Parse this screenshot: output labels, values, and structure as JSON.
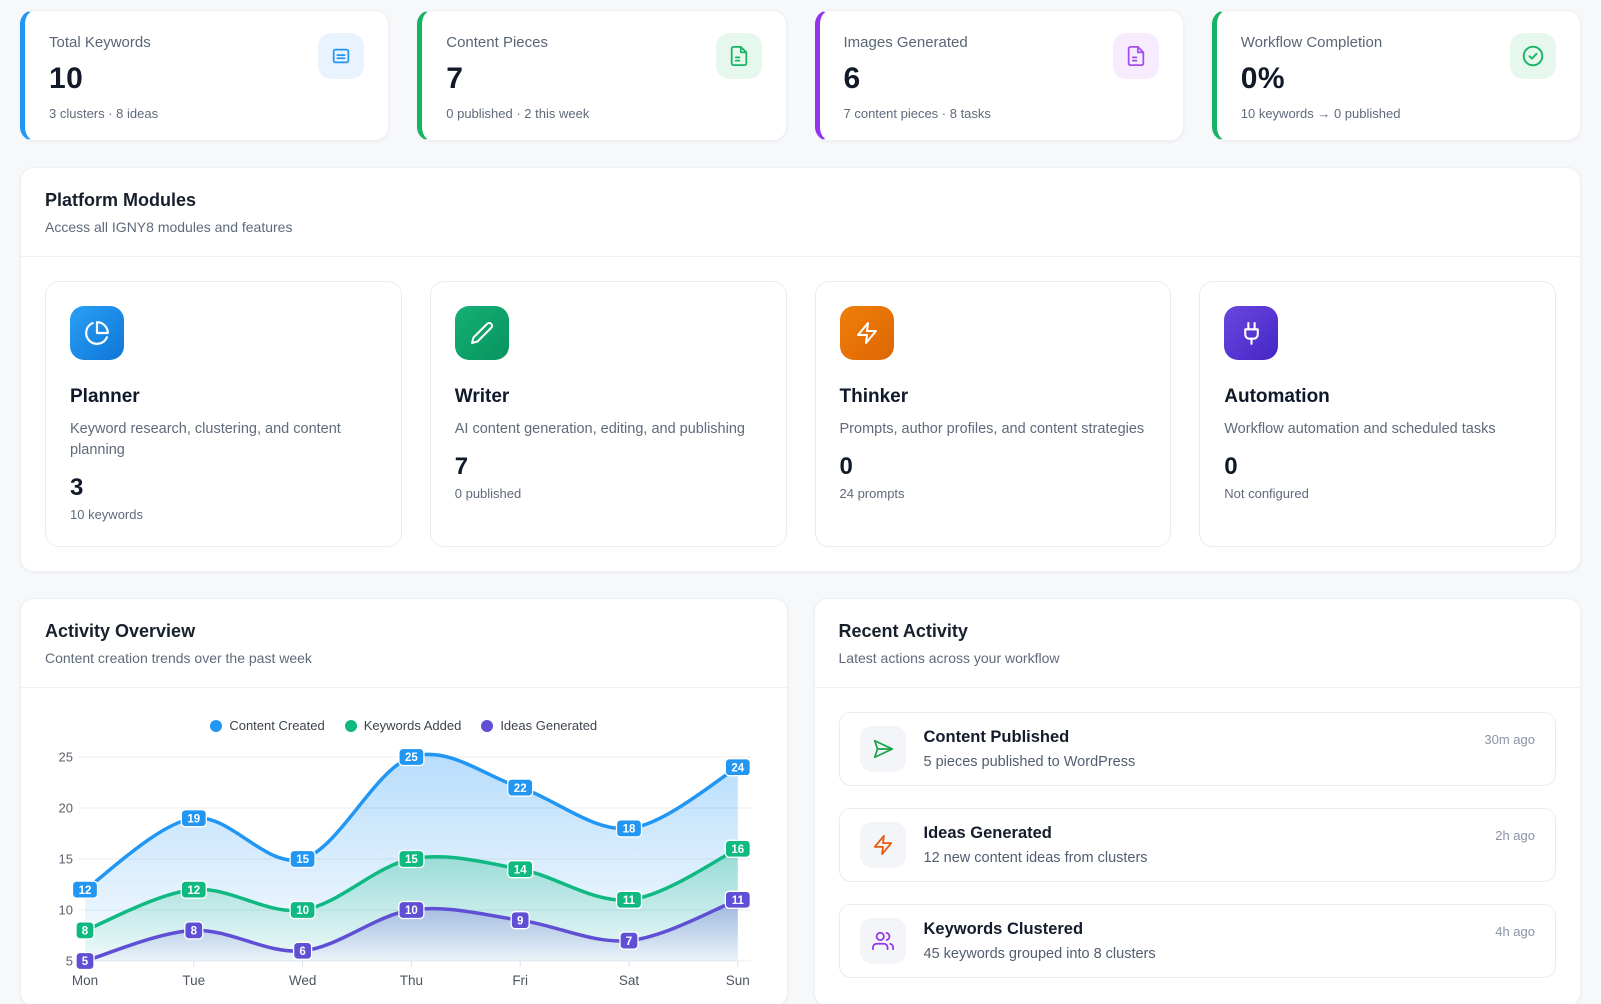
{
  "stats": [
    {
      "label": "Total Keywords",
      "value": "10",
      "sub": "3 clusters · 8 ideas",
      "icon": "document-lines-icon",
      "accent": "#2196f3",
      "icon_bg": "#e9f3fe",
      "icon_color": "#2196f3"
    },
    {
      "label": "Content Pieces",
      "value": "7",
      "sub": "0 published · 2 this week",
      "icon": "file-text-icon",
      "accent": "#16b364",
      "icon_bg": "#e6f8ee",
      "icon_color": "#16b364"
    },
    {
      "label": "Images Generated",
      "value": "6",
      "sub": "7 content pieces · 8 tasks",
      "icon": "file-text-icon",
      "accent": "#9333ea",
      "icon_bg": "#f7ecfe",
      "icon_color": "#a44cef"
    },
    {
      "label": "Workflow Completion",
      "value": "0%",
      "sub": "10 keywords → 0 published",
      "icon": "check-circle-icon",
      "accent": "#16b364",
      "icon_bg": "#e6f8ee",
      "icon_color": "#16b364"
    }
  ],
  "modules_section": {
    "title": "Platform Modules",
    "subtitle": "Access all IGNY8 modules and features"
  },
  "modules": [
    {
      "name": "Planner",
      "desc": "Keyword research, clustering, and content planning",
      "value": "3",
      "sub": "10 keywords",
      "icon": "pie-chart-icon",
      "color_from": "#2aa0f5",
      "color_to": "#0f76d8"
    },
    {
      "name": "Writer",
      "desc": "AI content generation, editing, and publishing",
      "value": "7",
      "sub": "0 published",
      "icon": "pencil-icon",
      "color_from": "#14b174",
      "color_to": "#089360"
    },
    {
      "name": "Thinker",
      "desc": "Prompts, author profiles, and content strategies",
      "value": "0",
      "sub": "24 prompts",
      "icon": "zap-icon",
      "color_from": "#ef7f09",
      "color_to": "#dd6604"
    },
    {
      "name": "Automation",
      "desc": "Workflow automation and scheduled tasks",
      "value": "0",
      "sub": "Not configured",
      "icon": "plug-icon",
      "color_from": "#6a46e0",
      "color_to": "#4527c4"
    }
  ],
  "activity_overview": {
    "title": "Activity Overview",
    "subtitle": "Content creation trends over the past week"
  },
  "chart_data": {
    "type": "area",
    "title": "",
    "xlabel": "",
    "ylabel": "",
    "x": [
      "Mon",
      "Tue",
      "Wed",
      "Thu",
      "Fri",
      "Sat",
      "Sun"
    ],
    "series": [
      {
        "name": "Content Created",
        "color": "#2196f3",
        "values": [
          12,
          19,
          15,
          25,
          22,
          18,
          24
        ]
      },
      {
        "name": "Keywords Added",
        "color": "#10b981",
        "values": [
          8,
          12,
          10,
          15,
          14,
          11,
          16
        ]
      },
      {
        "name": "Ideas Generated",
        "color": "#5e4fd4",
        "values": [
          5,
          8,
          6,
          10,
          9,
          7,
          11
        ]
      }
    ],
    "ylim": [
      5,
      25
    ],
    "yticks": [
      5,
      10,
      15,
      20,
      25
    ],
    "grid": true,
    "legend_position": "top",
    "point_labels": true
  },
  "recent_activity": {
    "title": "Recent Activity",
    "subtitle": "Latest actions across your workflow",
    "items": [
      {
        "title": "Content Published",
        "desc": "5 pieces published to WordPress",
        "time": "30m ago",
        "icon": "send-icon",
        "icon_color": "#16a34a"
      },
      {
        "title": "Ideas Generated",
        "desc": "12 new content ideas from clusters",
        "time": "2h ago",
        "icon": "zap-icon",
        "icon_color": "#ea580c"
      },
      {
        "title": "Keywords Clustered",
        "desc": "45 keywords grouped into 8 clusters",
        "time": "4h ago",
        "icon": "users-icon",
        "icon_color": "#9333ea"
      }
    ]
  }
}
